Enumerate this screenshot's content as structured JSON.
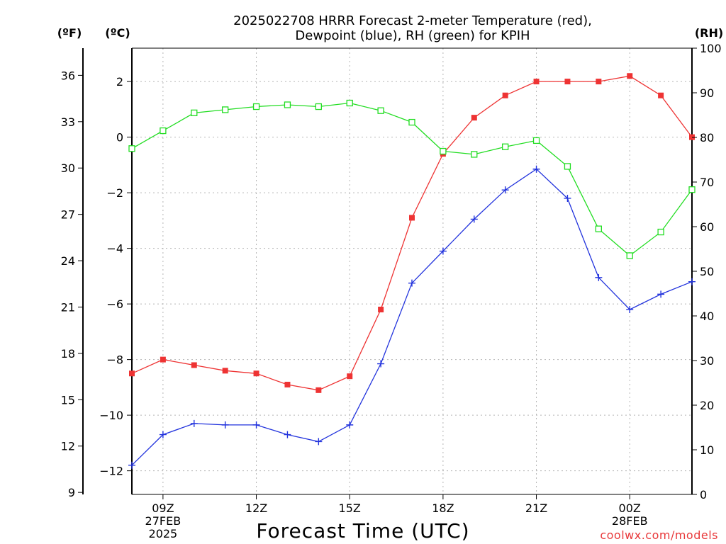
{
  "chart_data": {
    "type": "line",
    "title_line1": "2025022708 HRRR Forecast 2-meter Temperature (red),",
    "title_line2": "Dewpoint (blue), RH (green) for KPIH",
    "xlabel": "Forecast Time (UTC)",
    "credit": "coolwx.com/models",
    "units": {
      "fahrenheit": "(ºF)",
      "celsius": "(ºC)",
      "rh": "(RH)"
    },
    "x_hours": [
      8,
      9,
      10,
      11,
      12,
      13,
      14,
      15,
      16,
      17,
      18,
      19,
      20,
      21,
      22,
      23,
      24,
      25,
      26
    ],
    "xlim": [
      8,
      26
    ],
    "x_ticks": [
      {
        "hour": 9,
        "lines": [
          "09Z",
          "27FEB",
          "2025"
        ]
      },
      {
        "hour": 12,
        "lines": [
          "12Z"
        ]
      },
      {
        "hour": 15,
        "lines": [
          "15Z"
        ]
      },
      {
        "hour": 18,
        "lines": [
          "18Z"
        ]
      },
      {
        "hour": 21,
        "lines": [
          "21Z"
        ]
      },
      {
        "hour": 24,
        "lines": [
          "00Z",
          "28FEB"
        ]
      }
    ],
    "celsius_axis": {
      "ylim": [
        -12.85,
        3.2
      ],
      "ticks": [
        -12,
        -10,
        -8,
        -6,
        -4,
        -2,
        0,
        2
      ]
    },
    "fahrenheit_axis": {
      "ylim": [
        8.87,
        37.76
      ],
      "ticks": [
        9,
        12,
        15,
        18,
        21,
        24,
        27,
        30,
        33,
        36
      ]
    },
    "rh_axis": {
      "ylim": [
        0,
        100
      ],
      "ticks": [
        0,
        10,
        20,
        30,
        40,
        50,
        60,
        70,
        80,
        90,
        100
      ]
    },
    "series": [
      {
        "name": "Temperature",
        "axis": "celsius",
        "color": "#ee3333",
        "marker": "filled-square",
        "values": [
          -8.5,
          -8.0,
          -8.2,
          -8.4,
          -8.5,
          -8.9,
          -9.1,
          -8.6,
          -6.2,
          -2.9,
          -0.6,
          0.7,
          1.5,
          2.0,
          2.0,
          2.0,
          2.2,
          1.5,
          0.0
        ]
      },
      {
        "name": "Dewpoint",
        "axis": "celsius",
        "color": "#2233dd",
        "marker": "plus",
        "values": [
          -11.8,
          -10.7,
          -10.3,
          -10.35,
          -10.35,
          -10.7,
          -10.95,
          -10.35,
          -8.15,
          -5.25,
          -4.1,
          -2.95,
          -1.9,
          -1.15,
          -2.2,
          -5.05,
          -6.2,
          -5.65,
          -5.2
        ]
      },
      {
        "name": "RH",
        "axis": "rh",
        "color": "#22dd22",
        "marker": "open-square",
        "values": [
          77.5,
          81.5,
          85.5,
          86.2,
          86.9,
          87.3,
          86.9,
          87.7,
          86.0,
          83.4,
          76.9,
          76.2,
          77.9,
          79.3,
          73.5,
          59.5,
          53.5,
          58.8,
          68.3
        ]
      }
    ],
    "grid": true
  }
}
